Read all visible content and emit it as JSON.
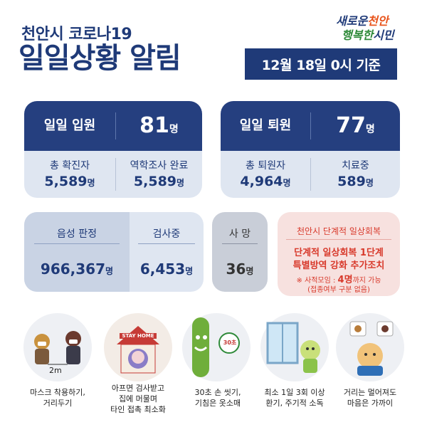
{
  "header": {
    "title_line1": "천안시 코로나19",
    "title_line2": "일일상황 알림",
    "date": "12월 18일 0시 기준",
    "logo_line1_a": "새로운",
    "logo_line1_b": "천안",
    "logo_line2_a": "행복한",
    "logo_line2_b": "시민"
  },
  "admissions": {
    "label": "일일 입원",
    "value": "81",
    "unit": "명",
    "total_confirmed_label": "총 확진자",
    "total_confirmed_value": "5,589",
    "total_confirmed_unit": "명",
    "epi_done_label": "역학조사 완료",
    "epi_done_value": "5,589",
    "epi_done_unit": "명"
  },
  "discharges": {
    "label": "일일 퇴원",
    "value": "77",
    "unit": "명",
    "total_discharged_label": "총 퇴원자",
    "total_discharged_value": "4,964",
    "total_discharged_unit": "명",
    "in_treatment_label": "치료중",
    "in_treatment_value": "589",
    "in_treatment_unit": "명"
  },
  "tests": {
    "negative_label": "음성 판정",
    "negative_value": "966,367",
    "negative_unit": "명",
    "testing_label": "검사중",
    "testing_value": "6,453",
    "testing_unit": "명"
  },
  "deaths": {
    "label": "사 망",
    "value": "36",
    "unit": "명"
  },
  "recovery": {
    "title": "천안시 단계적 일상회복",
    "line1": "단계적 일상회복 1단계",
    "line2": "특별방역 강화 추가조치",
    "note_prefix": "※ 사적모임 : ",
    "note_emph": "4명",
    "note_suffix": "까지 가능",
    "note2": "(접종여부 구분 없음)"
  },
  "tips": [
    {
      "line1": "마스크 착용하기,",
      "line2": "거리두기",
      "line3": "",
      "art_text": "2m"
    },
    {
      "line1": "아프면 검사받고",
      "line2": "집에 머물며",
      "line3": "타인 접촉 최소화",
      "art_text": "STAY HOME"
    },
    {
      "line1": "30초 손 씻기,",
      "line2": "기침은 옷소매",
      "line3": "",
      "art_text": "30초"
    },
    {
      "line1": "최소 1일 3회 이상",
      "line2": "환기, 주기적 소독",
      "line3": "",
      "art_text": ""
    },
    {
      "line1": "거리는 멀어져도",
      "line2": "마음은 가까이",
      "line3": "",
      "art_text": ""
    }
  ],
  "colors": {
    "navy": "#1f3a78",
    "light_blue": "#dfe6f1",
    "grey_box": "#cbd2dd",
    "pink_box": "#f7e1df",
    "red_text": "#d8392b"
  }
}
